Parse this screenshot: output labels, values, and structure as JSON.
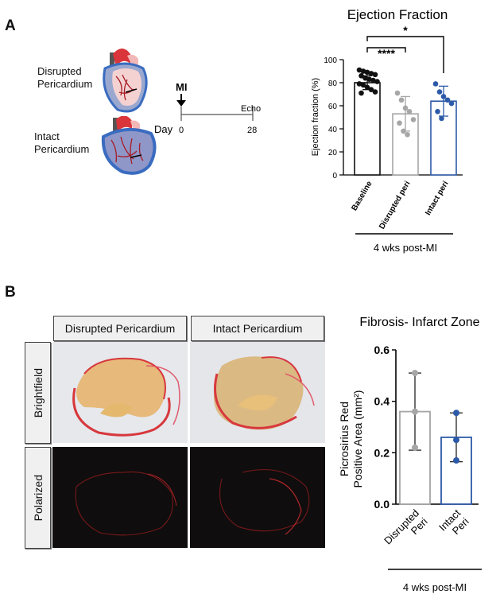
{
  "panel_a": {
    "letter": "A",
    "label_disrupted": [
      "Disrupted",
      "Pericardium"
    ],
    "label_intact": [
      "Intact",
      "Pericardium"
    ],
    "timeline": {
      "event": "MI",
      "day_label": "Day",
      "day_start": "0",
      "day_end": "28",
      "readout": "Echo"
    }
  },
  "panel_b": {
    "letter": "B",
    "col_disrupted": "Disrupted Pericardium",
    "col_intact": "Intact Pericardium",
    "row_brightfield": "Brightfield",
    "row_polarized": "Polarized"
  },
  "colors": {
    "black": "#111111",
    "gray": "#a6a6a6",
    "blue": "#2d5aa8",
    "stain_red": "#d7383d",
    "tissue_tan": "#e3b36a"
  },
  "chart_data": [
    {
      "type": "bar",
      "title": "Ejection Fraction",
      "ylabel": "Ejection fraction (%)",
      "xlabel": "4 wks post-MI",
      "ylim": [
        0,
        100
      ],
      "yticks": [
        0,
        20,
        40,
        60,
        80,
        100
      ],
      "categories": [
        "Baseline",
        "Disrupted peri",
        "Intact peri"
      ],
      "values": [
        80,
        53,
        64
      ],
      "error": [
        6,
        15,
        13
      ],
      "points": [
        [
          91,
          90,
          89,
          88,
          87,
          86,
          84,
          83,
          82,
          81,
          79,
          78,
          76,
          74,
          72,
          71
        ],
        [
          71,
          65,
          58,
          55,
          48,
          45,
          38,
          35
        ],
        [
          79,
          72,
          68,
          65,
          62,
          55,
          49
        ]
      ],
      "significance": [
        {
          "from": 0,
          "to": 1,
          "label": "****"
        },
        {
          "from": 0,
          "to": 2,
          "label": "*"
        }
      ]
    },
    {
      "type": "bar",
      "title": "Fibrosis- Infarct Zone",
      "ylabel": [
        "Picrosirius Red",
        "Positive Area (mm²)"
      ],
      "xlabel": "4 wks post-MI",
      "ylim": [
        0,
        0.6
      ],
      "yticks": [
        "0.0",
        "0.2",
        "0.4",
        "0.6"
      ],
      "categories": [
        [
          "Disrupted",
          "Peri"
        ],
        [
          "Intact",
          "Peri"
        ]
      ],
      "values": [
        0.36,
        0.26
      ],
      "error": [
        0.15,
        0.095
      ],
      "points": [
        [
          0.51,
          0.36,
          0.22
        ],
        [
          0.355,
          0.25,
          0.17
        ]
      ]
    }
  ]
}
